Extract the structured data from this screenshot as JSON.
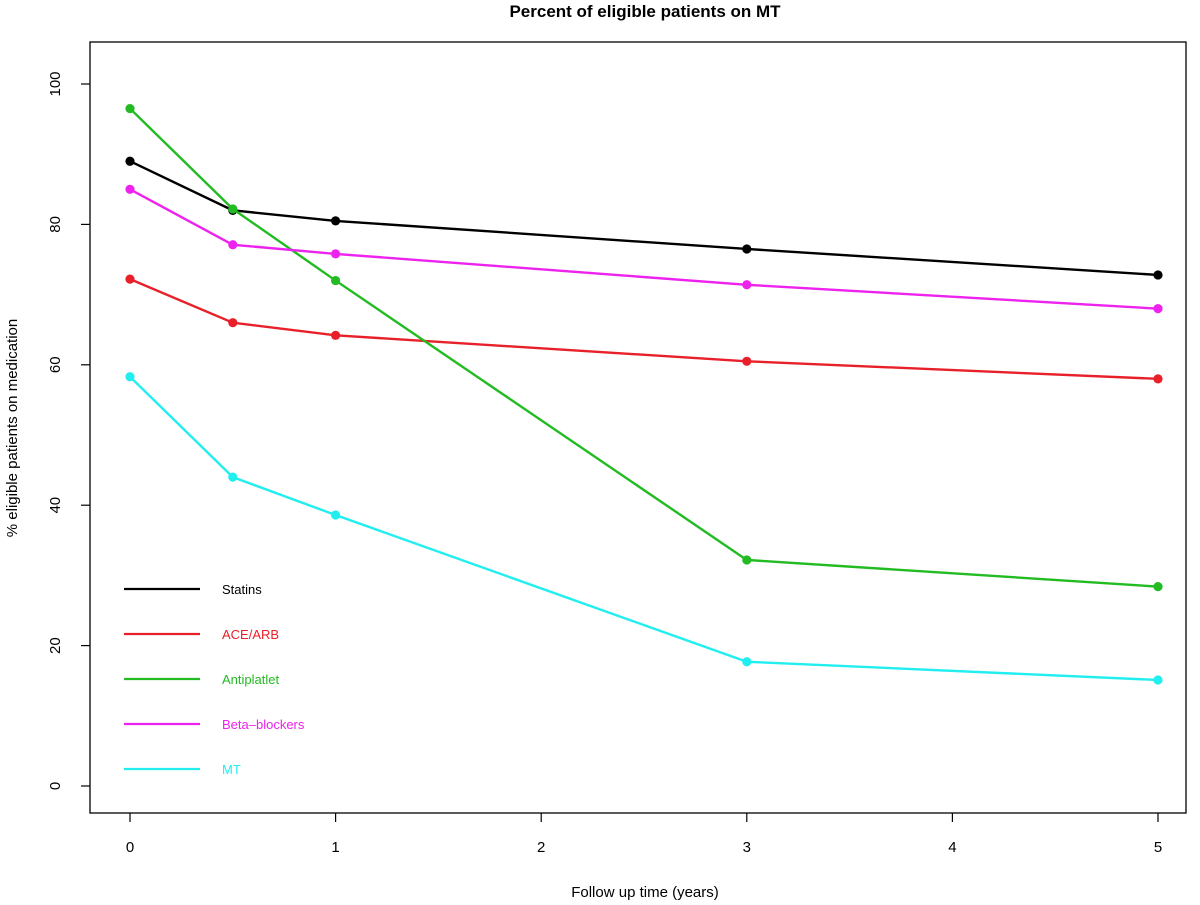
{
  "chart_data": {
    "type": "line",
    "title": "Percent of eligible patients on MT",
    "xlabel": "Follow up time (years)",
    "ylabel": "% eligible patients on medication",
    "xlim": [
      0,
      5
    ],
    "ylim": [
      0,
      100
    ],
    "xticks": [
      0,
      1,
      2,
      3,
      4,
      5
    ],
    "yticks": [
      0,
      20,
      40,
      60,
      80,
      100
    ],
    "grid": false,
    "legend_position": "bottom-left",
    "x": [
      0,
      0.5,
      1,
      3,
      5
    ],
    "series": [
      {
        "name": "Statins",
        "color": "#000000",
        "values": [
          89.0,
          82.0,
          80.5,
          76.5,
          72.8
        ]
      },
      {
        "name": "ACE/ARB",
        "color": "#e8202a",
        "values": [
          72.2,
          66.0,
          64.2,
          60.5,
          58.0
        ]
      },
      {
        "name": "Antiplatlet",
        "color": "#22bb22",
        "values": [
          96.5,
          82.2,
          72.0,
          32.2,
          28.4
        ]
      },
      {
        "name": "Beta–blockers",
        "color": "#ee22ee",
        "values": [
          85.0,
          77.1,
          75.8,
          71.4,
          68.0
        ]
      },
      {
        "name": "MT",
        "color": "#22eef0",
        "values": [
          58.3,
          44.0,
          38.6,
          17.7,
          15.1
        ]
      }
    ]
  }
}
